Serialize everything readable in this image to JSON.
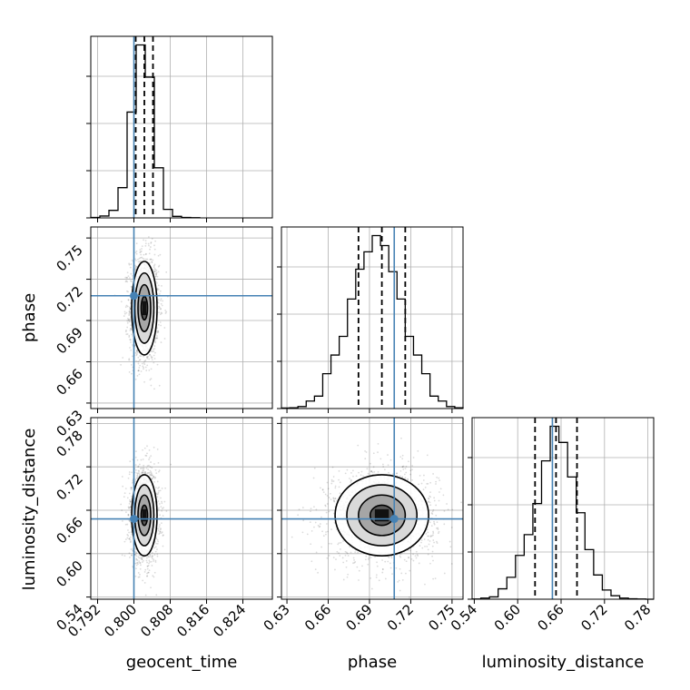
{
  "chart_data": {
    "type": "corner",
    "parameters": [
      "geocent_time",
      "phase",
      "luminosity_distance"
    ],
    "axis_labels": {
      "geocent_time": "geocent_time",
      "phase": "phase",
      "luminosity_distance": "luminosity_distance"
    },
    "truths": {
      "geocent_time": 0.8,
      "phase": 0.708,
      "luminosity_distance": 0.648
    },
    "truth_color": "#4682b4",
    "ranges": {
      "geocent_time": [
        0.7905,
        0.8305
      ],
      "phase": [
        0.626,
        0.758
      ],
      "luminosity_distance": [
        0.537,
        0.788
      ]
    },
    "ticks": {
      "geocent_time": {
        "values": [
          0.792,
          0.8,
          0.808,
          0.816,
          0.824
        ],
        "labels": [
          "0.792",
          "0.800",
          "0.808",
          "0.816",
          "0.824"
        ]
      },
      "phase": {
        "values": [
          0.63,
          0.66,
          0.69,
          0.72,
          0.75
        ],
        "labels": [
          "0.63",
          "0.66",
          "0.69",
          "0.72",
          "0.75"
        ]
      },
      "luminosity_distance": {
        "values": [
          0.54,
          0.6,
          0.66,
          0.72,
          0.78
        ],
        "labels": [
          "0.54",
          "0.60",
          "0.66",
          "0.72",
          "0.78"
        ]
      }
    },
    "marginals": {
      "geocent_time": {
        "edges": [
          0.7905,
          0.7925,
          0.7945,
          0.7965,
          0.7985,
          0.8005,
          0.8025,
          0.8045,
          0.8065,
          0.8085,
          0.8105,
          0.8125,
          0.8145
        ],
        "counts": [
          2,
          10,
          40,
          160,
          560,
          915,
          745,
          265,
          45,
          8,
          2,
          1
        ],
        "quantiles": [
          0.8004,
          0.8023,
          0.8042
        ]
      },
      "phase": {
        "edges": [
          0.626,
          0.632,
          0.638,
          0.644,
          0.65,
          0.656,
          0.662,
          0.668,
          0.674,
          0.68,
          0.686,
          0.692,
          0.698,
          0.704,
          0.71,
          0.716,
          0.722,
          0.728,
          0.734,
          0.74,
          0.746,
          0.752,
          0.758
        ],
        "counts": [
          2,
          3,
          8,
          30,
          50,
          140,
          215,
          290,
          440,
          560,
          630,
          695,
          655,
          550,
          440,
          290,
          215,
          140,
          50,
          30,
          8,
          3
        ],
        "quantiles": [
          0.682,
          0.699,
          0.716
        ]
      },
      "luminosity_distance": {
        "edges": [
          0.537,
          0.549,
          0.561,
          0.573,
          0.585,
          0.597,
          0.609,
          0.621,
          0.633,
          0.645,
          0.657,
          0.669,
          0.681,
          0.693,
          0.705,
          0.717,
          0.729,
          0.741,
          0.753,
          0.765,
          0.777,
          0.788
        ],
        "counts": [
          1,
          5,
          10,
          45,
          95,
          190,
          280,
          415,
          600,
          750,
          680,
          530,
          375,
          215,
          105,
          40,
          15,
          5,
          2,
          1,
          0
        ],
        "quantiles": [
          0.624,
          0.653,
          0.682
        ]
      }
    },
    "joint_2d": [
      {
        "x": "geocent_time",
        "y": "phase",
        "mean": [
          0.8023,
          0.699
        ],
        "std": [
          0.0014,
          0.017
        ]
      },
      {
        "x": "geocent_time",
        "y": "luminosity_distance",
        "mean": [
          0.8023,
          0.653
        ],
        "std": [
          0.0014,
          0.028
        ]
      },
      {
        "x": "phase",
        "y": "luminosity_distance",
        "mean": [
          0.699,
          0.653
        ],
        "std": [
          0.017,
          0.028
        ]
      }
    ],
    "contour_levels_sigma": [
      0.5,
      1.0,
      1.5,
      2.0
    ]
  }
}
